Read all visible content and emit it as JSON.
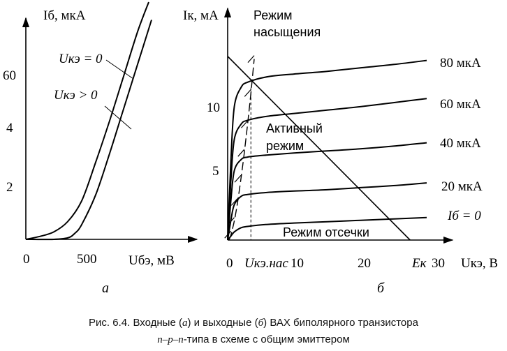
{
  "figure": {
    "caption": {
      "line1_a": "Рис. 6.4. Входные (",
      "line1_b": "а",
      "line1_c": ") и выходные (",
      "line1_d": "б",
      "line1_e": ") ВАХ биполярного транзистора",
      "line2_a": "n–p–n",
      "line2_b": "-типа в схеме с общим эмиттером"
    }
  },
  "chart_data": [
    {
      "type": "line",
      "panel_label": "а",
      "ylabel": "Iб, мкА",
      "xlabel": "Uбэ, мВ",
      "x_ticks": [
        "0",
        "500"
      ],
      "y_ticks": [
        "2",
        "4",
        "60"
      ],
      "xlim": [
        0,
        900
      ],
      "ylim": [
        0,
        8
      ],
      "grid": false,
      "legend": "none",
      "series": [
        {
          "name": "Uкэ = 0",
          "x": [
            0,
            100,
            200,
            300,
            400,
            500,
            600,
            700,
            800,
            880
          ],
          "y": [
            0.0,
            0.1,
            0.25,
            0.6,
            1.3,
            2.6,
            4.0,
            5.5,
            7.0,
            8.0
          ]
        },
        {
          "name": "Uкэ > 0",
          "x": [
            0,
            200,
            300,
            350,
            400,
            500,
            600,
            700,
            800,
            900
          ],
          "y": [
            0.0,
            0.0,
            0.05,
            0.2,
            0.5,
            1.5,
            2.9,
            4.4,
            5.9,
            7.4
          ]
        }
      ],
      "annotations": [
        "Uкэ = 0",
        "Uкэ > 0"
      ]
    },
    {
      "type": "line",
      "panel_label": "б",
      "ylabel": "Iк, мА",
      "xlabel": "Uкэ, В",
      "x_ticks": [
        "0",
        "10",
        "20",
        "30"
      ],
      "y_ticks": [
        "5",
        "10"
      ],
      "xlim": [
        0,
        32
      ],
      "ylim": [
        0,
        14
      ],
      "grid": false,
      "legend": "none",
      "series": [
        {
          "name": "Iб = 0",
          "x": [
            0,
            0.5,
            1,
            2,
            3,
            6,
            10,
            15,
            20,
            25,
            30
          ],
          "y": [
            0.0,
            0.3,
            0.6,
            0.9,
            1.0,
            1.15,
            1.25,
            1.35,
            1.45,
            1.55,
            1.65
          ]
        },
        {
          "name": "20 мкА",
          "x": [
            0,
            0.5,
            1,
            2,
            3,
            6,
            10,
            15,
            20,
            25,
            30
          ],
          "y": [
            0.0,
            1.5,
            2.6,
            3.2,
            3.35,
            3.5,
            3.6,
            3.7,
            3.85,
            4.0,
            4.2
          ]
        },
        {
          "name": "40 мкА",
          "x": [
            0,
            0.5,
            1,
            2,
            3,
            6,
            10,
            15,
            20,
            25,
            30
          ],
          "y": [
            0.0,
            3.0,
            5.1,
            5.9,
            6.1,
            6.25,
            6.4,
            6.55,
            6.7,
            6.9,
            7.15
          ]
        },
        {
          "name": "60 мкА",
          "x": [
            0,
            0.5,
            1,
            2,
            3,
            6,
            10,
            15,
            20,
            25,
            30
          ],
          "y": [
            0.0,
            4.5,
            7.4,
            8.5,
            8.8,
            9.1,
            9.3,
            9.55,
            9.8,
            10.1,
            10.4
          ]
        },
        {
          "name": "80 мкА",
          "x": [
            0,
            0.5,
            1,
            2,
            3,
            6,
            10,
            15,
            20,
            25,
            30
          ],
          "y": [
            0.0,
            6.0,
            9.8,
            11.2,
            11.6,
            12.0,
            12.2,
            12.4,
            12.65,
            12.9,
            13.2
          ]
        }
      ],
      "load_line": {
        "x": [
          0,
          27.5
        ],
        "y": [
          13.5,
          0
        ]
      },
      "saturation_boundary": {
        "x": [
          0.2,
          0.5,
          1,
          1.5,
          2,
          2.5,
          3,
          3.5,
          4
        ],
        "y": [
          0.0,
          0.4,
          1.4,
          2.8,
          4.5,
          6.4,
          8.5,
          10.8,
          13.3
        ]
      },
      "vertical_marker": {
        "x": 3.5,
        "label": "Uкэ.нас"
      },
      "x_marker": {
        "x": 27.5,
        "label": "Eк"
      },
      "annotations": [
        "Режим",
        "насыщения",
        "Активный",
        "режим",
        "Режим отсечки",
        "80 мкА",
        "60 мкА",
        "40 мкА",
        "20 мкА",
        "Iб = 0"
      ]
    }
  ]
}
